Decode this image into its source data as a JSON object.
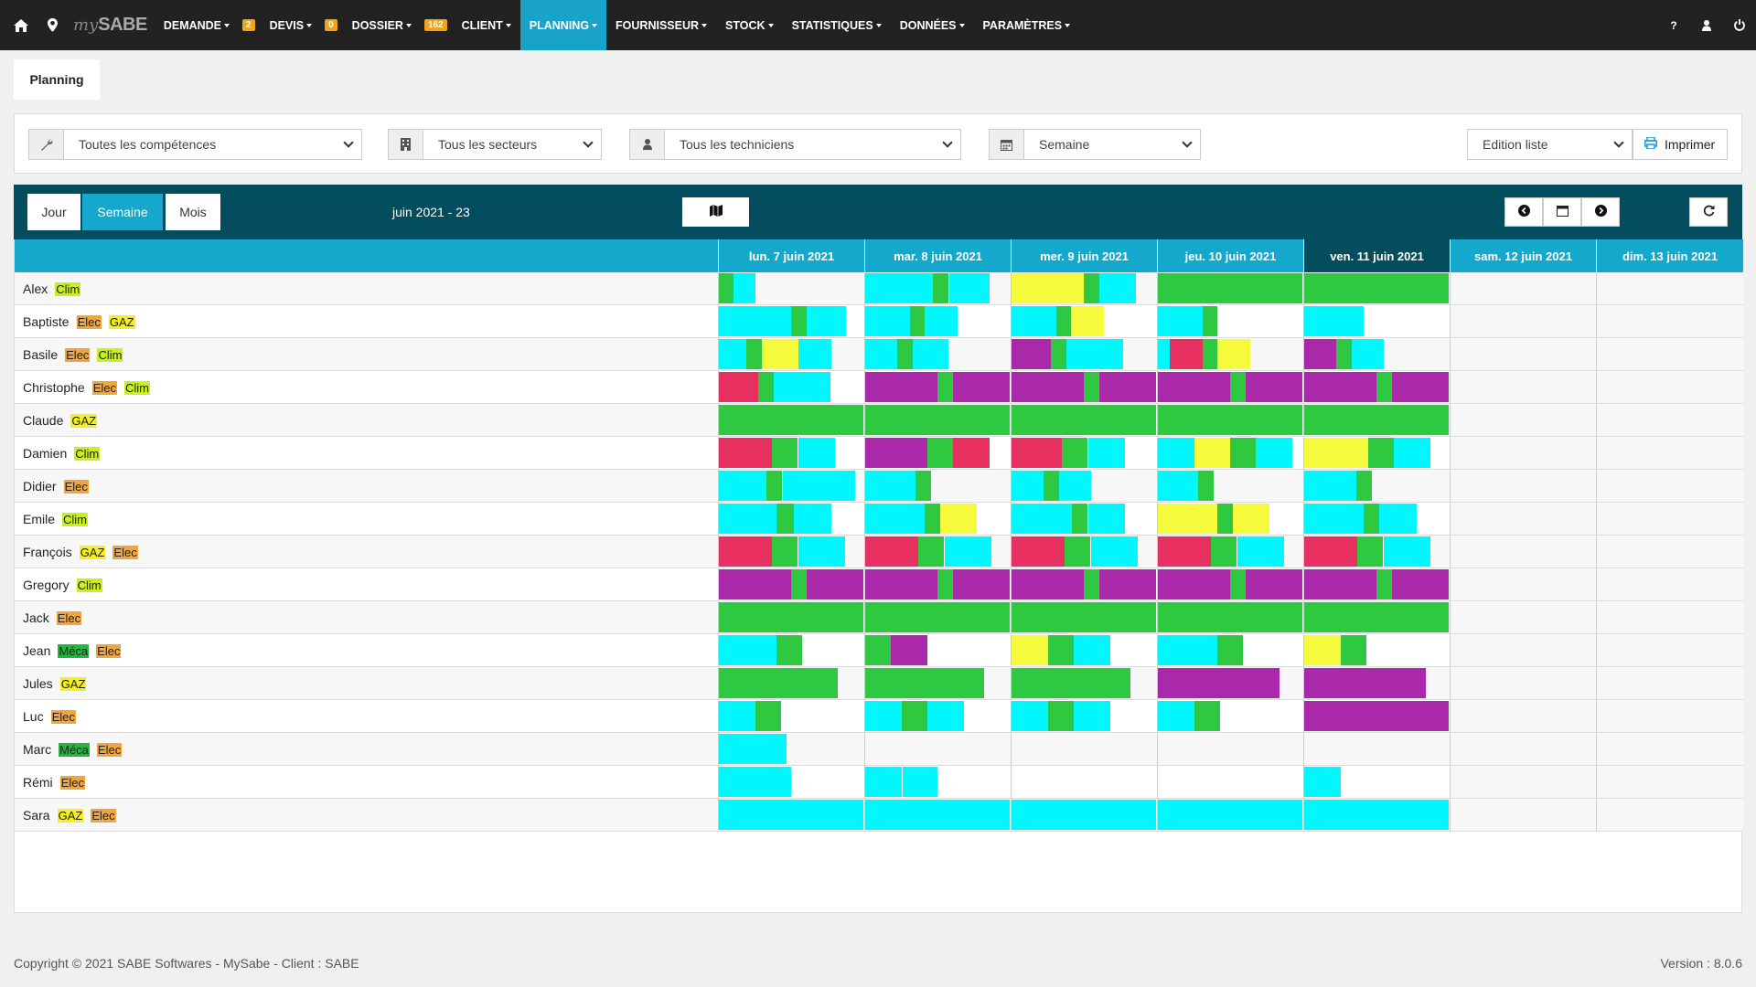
{
  "nav": {
    "logo_prefix": "my",
    "logo_name": "SABE",
    "items": [
      {
        "label": "DEMANDE",
        "badge": "2"
      },
      {
        "label": "DEVIS",
        "badge": "0"
      },
      {
        "label": "DOSSIER",
        "badge": "162"
      },
      {
        "label": "CLIENT",
        "badge": ""
      },
      {
        "label": "PLANNING",
        "badge": "",
        "active": true
      },
      {
        "label": "FOURNISSEUR",
        "badge": ""
      },
      {
        "label": "STOCK",
        "badge": ""
      },
      {
        "label": "STATISTIQUES",
        "badge": ""
      },
      {
        "label": "DONNÉES",
        "badge": ""
      },
      {
        "label": "PARAMÈTRES",
        "badge": ""
      }
    ],
    "right_icons": [
      "help-icon",
      "user-icon",
      "power-icon"
    ],
    "help_label": "?"
  },
  "page_tab": "Planning",
  "filters": {
    "competences": "Toutes les compétences",
    "secteurs": "Tous les secteurs",
    "techniciens": "Tous les techniciens",
    "periode": "Semaine",
    "edition": "Edition liste",
    "print": "Imprimer"
  },
  "view": {
    "buttons": [
      "Jour",
      "Semaine",
      "Mois"
    ],
    "active": "Semaine",
    "period_label": "juin 2021 - 23"
  },
  "colors": {
    "cyan": "#00f7fb",
    "green": "#2ec940",
    "yellow": "#f6fa3c",
    "red": "#e83060",
    "purple": "#aa28aa",
    "skill_clim": "#c8f01c",
    "skill_elec": "#f4a53a",
    "skill_gaz": "#f4f01c",
    "skill_meca": "#1fb83a"
  },
  "days": [
    {
      "label": "lun. 7 juin 2021"
    },
    {
      "label": "mar. 8 juin 2021"
    },
    {
      "label": "mer. 9 juin 2021"
    },
    {
      "label": "jeu. 10 juin 2021"
    },
    {
      "label": "ven. 11 juin 2021",
      "today": true
    },
    {
      "label": "sam. 12 juin 2021"
    },
    {
      "label": "dim. 13 juin 2021"
    }
  ],
  "technicians": [
    {
      "name": "Alex",
      "skills": [
        "Clim"
      ],
      "days": [
        [
          [
            "green",
            0,
            0.1
          ],
          [
            "cyan",
            0.1,
            0.25
          ]
        ],
        [
          [
            "cyan",
            0,
            0.47
          ],
          [
            "green",
            0.47,
            0.58
          ],
          [
            "cyan",
            0.58,
            0.86
          ]
        ],
        [
          [
            "yellow",
            0,
            0.5
          ],
          [
            "green",
            0.5,
            0.61
          ],
          [
            "cyan",
            0.61,
            0.86
          ]
        ],
        [
          [
            "green",
            0,
            1
          ]
        ],
        [
          [
            "green",
            0,
            1
          ]
        ],
        [],
        []
      ]
    },
    {
      "name": "Baptiste",
      "skills": [
        "Elec",
        "GAZ"
      ],
      "days": [
        [
          [
            "cyan",
            0,
            0.5
          ],
          [
            "green",
            0.5,
            0.61
          ],
          [
            "cyan",
            0.61,
            0.88
          ]
        ],
        [
          [
            "cyan",
            0,
            0.31
          ],
          [
            "green",
            0.31,
            0.41
          ],
          [
            "cyan",
            0.41,
            0.64
          ]
        ],
        [
          [
            "cyan",
            0,
            0.31
          ],
          [
            "green",
            0.31,
            0.41
          ],
          [
            "yellow",
            0.41,
            0.64
          ]
        ],
        [
          [
            "cyan",
            0,
            0.31
          ],
          [
            "green",
            0.31,
            0.41
          ]
        ],
        [
          [
            "cyan",
            0,
            0.41
          ]
        ],
        [],
        []
      ]
    },
    {
      "name": "Basile",
      "skills": [
        "Elec",
        "Clim"
      ],
      "days": [
        [
          [
            "cyan",
            0,
            0.19
          ],
          [
            "green",
            0.19,
            0.3
          ],
          [
            "yellow",
            0.3,
            0.55
          ],
          [
            "cyan",
            0.55,
            0.78
          ]
        ],
        [
          [
            "cyan",
            0,
            0.22
          ],
          [
            "green",
            0.22,
            0.33
          ],
          [
            "cyan",
            0.33,
            0.58
          ]
        ],
        [
          [
            "purple",
            0,
            0.27
          ],
          [
            "green",
            0.27,
            0.38
          ],
          [
            "cyan",
            0.38,
            0.77
          ]
        ],
        [
          [
            "cyan",
            0,
            0.08
          ],
          [
            "red",
            0.08,
            0.31
          ],
          [
            "green",
            0.31,
            0.41
          ],
          [
            "yellow",
            0.41,
            0.64
          ]
        ],
        [
          [
            "purple",
            0,
            0.22
          ],
          [
            "green",
            0.22,
            0.33
          ],
          [
            "cyan",
            0.33,
            0.55
          ]
        ],
        [],
        []
      ]
    },
    {
      "name": "Christophe",
      "skills": [
        "Elec",
        "Clim"
      ],
      "days": [
        [
          [
            "red",
            0,
            0.27
          ],
          [
            "green",
            0.27,
            0.38
          ],
          [
            "cyan",
            0.38,
            0.77
          ]
        ],
        [
          [
            "purple",
            0,
            0.5
          ],
          [
            "green",
            0.5,
            0.61
          ],
          [
            "purple",
            0.61,
            1
          ]
        ],
        [
          [
            "purple",
            0,
            0.5
          ],
          [
            "green",
            0.5,
            0.61
          ],
          [
            "purple",
            0.61,
            1
          ]
        ],
        [
          [
            "purple",
            0,
            0.5
          ],
          [
            "green",
            0.5,
            0.61
          ],
          [
            "purple",
            0.61,
            1
          ]
        ],
        [
          [
            "purple",
            0,
            0.5
          ],
          [
            "green",
            0.5,
            0.61
          ],
          [
            "purple",
            0.61,
            1
          ]
        ],
        [],
        []
      ]
    },
    {
      "name": "Claude",
      "skills": [
        "GAZ"
      ],
      "days": [
        [
          [
            "green",
            0,
            1
          ]
        ],
        [
          [
            "green",
            0,
            1
          ]
        ],
        [
          [
            "green",
            0,
            1
          ]
        ],
        [
          [
            "green",
            0,
            1
          ]
        ],
        [
          [
            "green",
            0,
            1
          ]
        ],
        [],
        []
      ]
    },
    {
      "name": "Damien",
      "skills": [
        "Clim"
      ],
      "days": [
        [
          [
            "red",
            0,
            0.37
          ],
          [
            "green",
            0.37,
            0.55
          ],
          [
            "cyan",
            0.55,
            0.8
          ]
        ],
        [
          [
            "purple",
            0,
            0.43
          ],
          [
            "green",
            0.43,
            0.61
          ],
          [
            "red",
            0.61,
            0.86
          ]
        ],
        [
          [
            "red",
            0,
            0.35
          ],
          [
            "green",
            0.35,
            0.53
          ],
          [
            "cyan",
            0.53,
            0.78
          ]
        ],
        [
          [
            "cyan",
            0,
            0.25
          ],
          [
            "yellow",
            0.25,
            0.5
          ],
          [
            "green",
            0.5,
            0.68
          ],
          [
            "cyan",
            0.68,
            0.93
          ]
        ],
        [
          [
            "yellow",
            0,
            0.44
          ],
          [
            "green",
            0.44,
            0.62
          ],
          [
            "cyan",
            0.62,
            0.87
          ]
        ],
        [],
        []
      ]
    },
    {
      "name": "Didier",
      "skills": [
        "Elec"
      ],
      "days": [
        [
          [
            "cyan",
            0,
            0.33
          ],
          [
            "green",
            0.33,
            0.44
          ],
          [
            "cyan",
            0.44,
            0.94
          ]
        ],
        [
          [
            "cyan",
            0,
            0.35
          ],
          [
            "green",
            0.35,
            0.46
          ]
        ],
        [
          [
            "cyan",
            0,
            0.22
          ],
          [
            "green",
            0.22,
            0.33
          ],
          [
            "cyan",
            0.33,
            0.55
          ]
        ],
        [
          [
            "cyan",
            0,
            0.28
          ],
          [
            "green",
            0.28,
            0.39
          ]
        ],
        [
          [
            "cyan",
            0,
            0.36
          ],
          [
            "green",
            0.36,
            0.47
          ]
        ],
        [],
        []
      ]
    },
    {
      "name": "Emile",
      "skills": [
        "Clim"
      ],
      "days": [
        [
          [
            "cyan",
            0,
            0.4
          ],
          [
            "green",
            0.4,
            0.52
          ],
          [
            "cyan",
            0.52,
            0.78
          ]
        ],
        [
          [
            "cyan",
            0,
            0.41
          ],
          [
            "green",
            0.41,
            0.52
          ],
          [
            "yellow",
            0.52,
            0.77
          ]
        ],
        [
          [
            "cyan",
            0,
            0.42
          ],
          [
            "green",
            0.42,
            0.53
          ],
          [
            "cyan",
            0.53,
            0.78
          ]
        ],
        [
          [
            "yellow",
            0,
            0.41
          ],
          [
            "green",
            0.41,
            0.52
          ],
          [
            "yellow",
            0.52,
            0.77
          ]
        ],
        [
          [
            "cyan",
            0,
            0.41
          ],
          [
            "green",
            0.41,
            0.52
          ],
          [
            "cyan",
            0.52,
            0.78
          ]
        ],
        [],
        []
      ]
    },
    {
      "name": "François",
      "skills": [
        "GAZ",
        "Elec"
      ],
      "days": [
        [
          [
            "red",
            0,
            0.37
          ],
          [
            "green",
            0.37,
            0.55
          ],
          [
            "cyan",
            0.55,
            0.87
          ]
        ],
        [
          [
            "red",
            0,
            0.37
          ],
          [
            "green",
            0.37,
            0.55
          ],
          [
            "cyan",
            0.55,
            0.87
          ]
        ],
        [
          [
            "red",
            0,
            0.37
          ],
          [
            "green",
            0.37,
            0.55
          ],
          [
            "cyan",
            0.55,
            0.87
          ]
        ],
        [
          [
            "red",
            0,
            0.37
          ],
          [
            "green",
            0.37,
            0.55
          ],
          [
            "cyan",
            0.55,
            0.87
          ]
        ],
        [
          [
            "red",
            0,
            0.37
          ],
          [
            "green",
            0.37,
            0.55
          ],
          [
            "cyan",
            0.55,
            0.87
          ]
        ],
        [],
        []
      ]
    },
    {
      "name": "Gregory",
      "skills": [
        "Clim"
      ],
      "days": [
        [
          [
            "purple",
            0,
            0.5
          ],
          [
            "green",
            0.5,
            0.61
          ],
          [
            "purple",
            0.61,
            1
          ]
        ],
        [
          [
            "purple",
            0,
            0.5
          ],
          [
            "green",
            0.5,
            0.61
          ],
          [
            "purple",
            0.61,
            1
          ]
        ],
        [
          [
            "purple",
            0,
            0.5
          ],
          [
            "green",
            0.5,
            0.61
          ],
          [
            "purple",
            0.61,
            1
          ]
        ],
        [
          [
            "purple",
            0,
            0.5
          ],
          [
            "green",
            0.5,
            0.61
          ],
          [
            "purple",
            0.61,
            1
          ]
        ],
        [
          [
            "purple",
            0,
            0.5
          ],
          [
            "green",
            0.5,
            0.61
          ],
          [
            "purple",
            0.61,
            1
          ]
        ],
        [],
        []
      ]
    },
    {
      "name": "Jack",
      "skills": [
        "Elec"
      ],
      "days": [
        [
          [
            "green",
            0,
            1
          ]
        ],
        [
          [
            "green",
            0,
            1
          ]
        ],
        [
          [
            "green",
            0,
            1
          ]
        ],
        [
          [
            "green",
            0,
            1
          ]
        ],
        [
          [
            "green",
            0,
            1
          ]
        ],
        [],
        []
      ]
    },
    {
      "name": "Jean",
      "skills": [
        "Méca",
        "Elec"
      ],
      "days": [
        [
          [
            "cyan",
            0,
            0.4
          ],
          [
            "green",
            0.4,
            0.58
          ]
        ],
        [
          [
            "green",
            0,
            0.18
          ],
          [
            "purple",
            0.18,
            0.43
          ]
        ],
        [
          [
            "yellow",
            0,
            0.25
          ],
          [
            "green",
            0.25,
            0.43
          ],
          [
            "cyan",
            0.43,
            0.68
          ]
        ],
        [
          [
            "cyan",
            0,
            0.41
          ],
          [
            "green",
            0.41,
            0.59
          ]
        ],
        [
          [
            "yellow",
            0,
            0.25
          ],
          [
            "green",
            0.25,
            0.43
          ]
        ],
        [],
        []
      ]
    },
    {
      "name": "Jules",
      "skills": [
        "GAZ"
      ],
      "days": [
        [
          [
            "green",
            0,
            0.82
          ]
        ],
        [
          [
            "green",
            0,
            0.82
          ]
        ],
        [
          [
            "green",
            0,
            0.82
          ]
        ],
        [
          [
            "purple",
            0,
            0.84
          ]
        ],
        [
          [
            "purple",
            0,
            0.84
          ]
        ],
        [],
        []
      ]
    },
    {
      "name": "Luc",
      "skills": [
        "Elec"
      ],
      "days": [
        [
          [
            "cyan",
            0,
            0.25
          ],
          [
            "green",
            0.25,
            0.43
          ]
        ],
        [
          [
            "cyan",
            0,
            0.25
          ],
          [
            "green",
            0.25,
            0.43
          ],
          [
            "cyan",
            0.43,
            0.68
          ]
        ],
        [
          [
            "cyan",
            0,
            0.25
          ],
          [
            "green",
            0.25,
            0.43
          ],
          [
            "cyan",
            0.43,
            0.68
          ]
        ],
        [
          [
            "cyan",
            0,
            0.25
          ],
          [
            "green",
            0.25,
            0.43
          ]
        ],
        [
          [
            "purple",
            0,
            1
          ]
        ],
        [],
        []
      ]
    },
    {
      "name": "Marc",
      "skills": [
        "Méca",
        "Elec"
      ],
      "days": [
        [
          [
            "cyan",
            0,
            0.47
          ]
        ],
        [],
        [],
        [],
        [],
        [],
        []
      ]
    },
    {
      "name": "Rémi",
      "skills": [
        "Elec"
      ],
      "days": [
        [
          [
            "cyan",
            0,
            0.5
          ]
        ],
        [
          [
            "cyan",
            0,
            0.25
          ],
          [
            "cyan",
            0.26,
            0.5
          ]
        ],
        [],
        [],
        [
          [
            "cyan",
            0,
            0.25
          ]
        ],
        [],
        []
      ]
    },
    {
      "name": "Sara",
      "skills": [
        "GAZ",
        "Elec"
      ],
      "days": [
        [
          [
            "cyan",
            0,
            1
          ]
        ],
        [
          [
            "cyan",
            0,
            1
          ]
        ],
        [
          [
            "cyan",
            0,
            1
          ]
        ],
        [
          [
            "cyan",
            0,
            1
          ]
        ],
        [
          [
            "cyan",
            0,
            1
          ]
        ],
        [],
        []
      ]
    }
  ],
  "footer": {
    "copyright": "Copyright © 2021 SABE Softwares - MySabe - Client : SABE",
    "version": "Version : 8.0.6"
  }
}
